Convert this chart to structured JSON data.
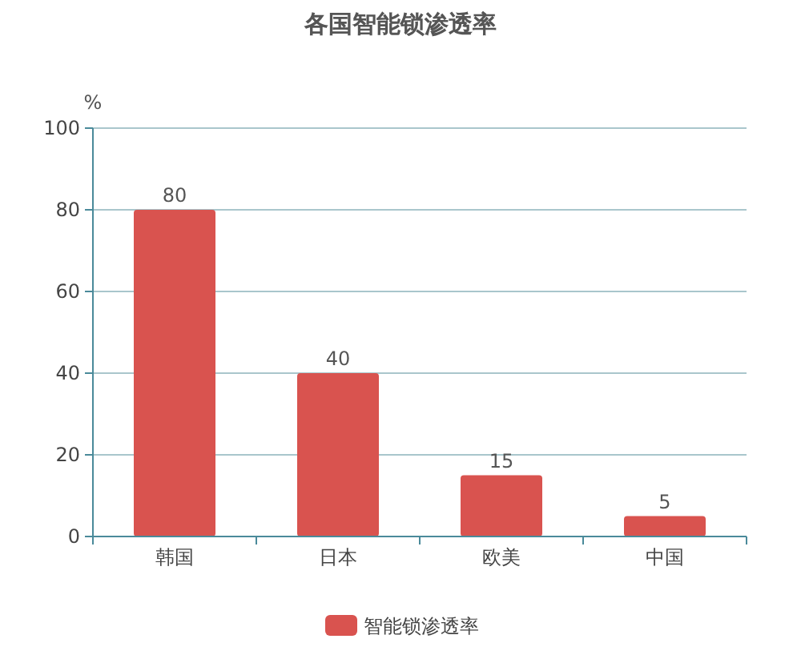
{
  "chart_data": {
    "type": "bar",
    "title": "各国智能锁渗透率",
    "ylabel": "%",
    "categories": [
      "韩国",
      "日本",
      "欧美",
      "中国"
    ],
    "series": [
      {
        "name": "智能锁渗透率",
        "color": "#d9534f",
        "values": [
          80,
          40,
          15,
          5
        ]
      }
    ],
    "ylim": [
      0,
      100
    ],
    "yticks": [
      0,
      20,
      40,
      60,
      80,
      100
    ],
    "grid": "y",
    "legend": "bottom",
    "data_labels": true
  }
}
